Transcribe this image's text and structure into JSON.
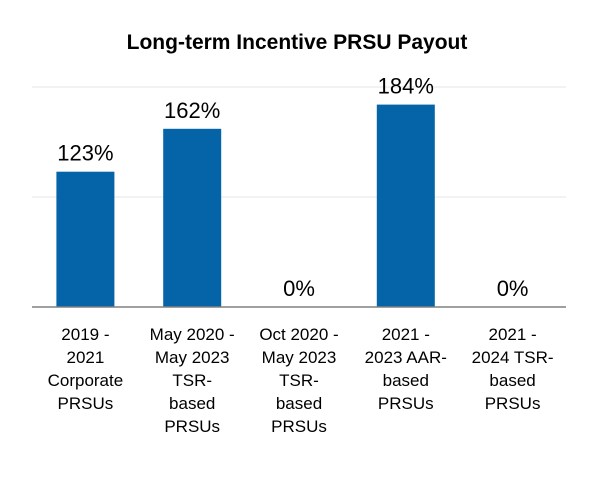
{
  "chart_data": {
    "type": "bar",
    "title": "Long-term Incentive PRSU Payout",
    "categories": [
      [
        "2019 -",
        "2021",
        "Corporate",
        "PRSUs"
      ],
      [
        "May 2020 -",
        "May 2023",
        "TSR-",
        "based",
        "PRSUs"
      ],
      [
        "Oct 2020 -",
        "May 2023",
        "TSR-",
        "based",
        "PRSUs"
      ],
      [
        "2021 -",
        "2023 AAR-",
        "based",
        "PRSUs"
      ],
      [
        "2021 -",
        "2024 TSR-",
        "based",
        "PRSUs"
      ]
    ],
    "values": [
      123,
      162,
      0,
      184,
      0
    ],
    "value_labels": [
      "123%",
      "162%",
      "0%",
      "184%",
      "0%"
    ],
    "unit": "%",
    "ylim": [
      0,
      200
    ],
    "grid": true,
    "legend": "none",
    "colors": {
      "bar": "#0563a8",
      "grid": "#e6e6e6",
      "axis": "#808080"
    }
  }
}
